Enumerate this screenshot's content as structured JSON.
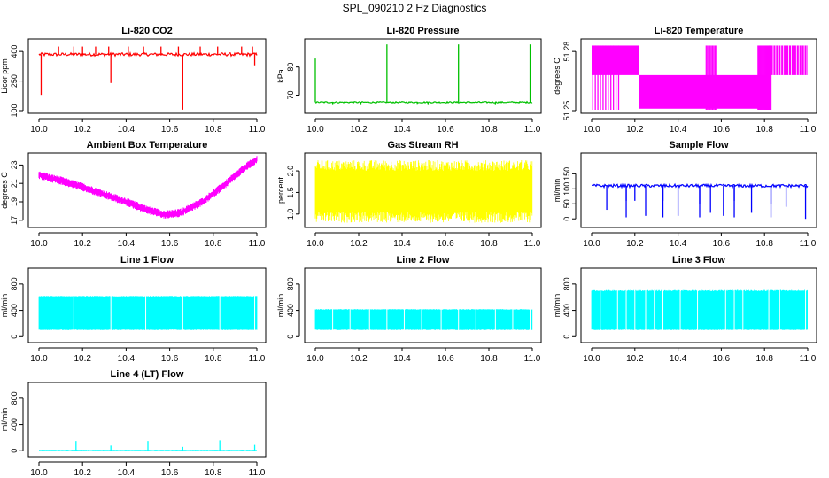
{
  "figure_title": "SPL_090210  2 Hz Diagnostics",
  "chart_data": [
    {
      "type": "line",
      "title": "Li-820 CO2",
      "xlabel": "",
      "ylabel": "Licor ppm",
      "color": "#ff0000",
      "xlim": [
        10.0,
        11.0
      ],
      "ylim": [
        100,
        450
      ],
      "yticks": [
        100,
        250,
        400
      ],
      "xticks": [
        "10.0",
        "10.2",
        "10.4",
        "10.6",
        "10.8",
        "11.0"
      ],
      "baseline": 385,
      "noise": 8,
      "spikes": [
        [
          10.01,
          180
        ],
        [
          10.09,
          425
        ],
        [
          10.16,
          425
        ],
        [
          10.2,
          425
        ],
        [
          10.26,
          425
        ],
        [
          10.32,
          425
        ],
        [
          10.33,
          240
        ],
        [
          10.41,
          425
        ],
        [
          10.48,
          425
        ],
        [
          10.56,
          425
        ],
        [
          10.64,
          425
        ],
        [
          10.66,
          105
        ],
        [
          10.74,
          425
        ],
        [
          10.82,
          425
        ],
        [
          10.93,
          425
        ],
        [
          10.98,
          425
        ],
        [
          10.99,
          330
        ]
      ]
    },
    {
      "type": "line",
      "title": "Li-820 Pressure",
      "xlabel": "",
      "ylabel": "kPa",
      "color": "#00c000",
      "xlim": [
        10.0,
        11.0
      ],
      "ylim": [
        64.5,
        89
      ],
      "yticks": [
        70,
        80
      ],
      "xticks": [
        "10.0",
        "10.2",
        "10.4",
        "10.6",
        "10.8",
        "11.0"
      ],
      "baseline": 67.5,
      "noise": 0.25,
      "spikes": [
        [
          10.0,
          83
        ],
        [
          10.33,
          88
        ],
        [
          10.66,
          88
        ],
        [
          10.99,
          88
        ],
        [
          10.08,
          66.5
        ],
        [
          10.21,
          66.5
        ],
        [
          10.47,
          66.6
        ],
        [
          10.52,
          66.5
        ],
        [
          10.83,
          66.5
        ]
      ]
    },
    {
      "type": "step",
      "title": "Li-820 Temperature",
      "xlabel": "",
      "ylabel": "degrees C",
      "color": "#ff00ff",
      "xlim": [
        10.0,
        11.0
      ],
      "ylim": [
        51.25,
        51.285
      ],
      "yticks": [
        51.25,
        51.28
      ],
      "yticklabels": [
        "51.25",
        "51.28"
      ],
      "xticks": [
        "10.0",
        "10.2",
        "10.4",
        "10.6",
        "10.8",
        "11.0"
      ],
      "segments": [
        [
          10.0,
          10.22,
          51.283,
          51.268
        ],
        [
          10.22,
          10.82,
          51.268,
          51.251
        ],
        [
          10.82,
          11.0,
          51.283,
          51.268
        ]
      ],
      "dense_until": 10.13,
      "dense_from_1": 10.53,
      "dense_to_1": 10.58,
      "dense_from_2": 10.77
    },
    {
      "type": "line",
      "title": "Ambient Box Temperature",
      "xlabel": "",
      "ylabel": "degrees C",
      "color": "#ff00ff",
      "xlim": [
        10.0,
        11.0
      ],
      "ylim": [
        16.5,
        24
      ],
      "yticks": [
        17,
        19,
        21,
        23
      ],
      "xticks": [
        "10.0",
        "10.2",
        "10.4",
        "10.6",
        "10.8",
        "11.0"
      ],
      "curve": [
        [
          10.0,
          21.9
        ],
        [
          10.1,
          21.3
        ],
        [
          10.2,
          20.6
        ],
        [
          10.3,
          19.8
        ],
        [
          10.4,
          19.0
        ],
        [
          10.5,
          18.1
        ],
        [
          10.58,
          17.6
        ],
        [
          10.65,
          17.8
        ],
        [
          10.75,
          19.0
        ],
        [
          10.85,
          20.8
        ],
        [
          10.95,
          22.8
        ],
        [
          11.0,
          23.6
        ]
      ],
      "noise": 0.45
    },
    {
      "type": "band",
      "title": "Gas Stream RH",
      "xlabel": "",
      "ylabel": "percent",
      "color": "#ffff00",
      "xlim": [
        10.0,
        11.0
      ],
      "ylim": [
        0.75,
        2.35
      ],
      "yticks": [
        1.0,
        1.5,
        2.0
      ],
      "yticklabels": [
        "1.0",
        "1.5",
        "2.0"
      ],
      "xticks": [
        "10.0",
        "10.2",
        "10.4",
        "10.6",
        "10.8",
        "11.0"
      ],
      "low": 1.05,
      "high": 2.0,
      "min": 0.8,
      "max": 2.25
    },
    {
      "type": "line",
      "title": "Sample Flow",
      "xlabel": "",
      "ylabel": "ml/min",
      "color": "#0000ff",
      "xlim": [
        10.0,
        11.0
      ],
      "ylim": [
        -20,
        210
      ],
      "yticks": [
        0,
        50,
        100,
        150
      ],
      "xticks": [
        "10.0",
        "10.2",
        "10.4",
        "10.6",
        "10.8",
        "11.0"
      ],
      "baseline": 110,
      "noise": 5,
      "spikes": [
        [
          10.07,
          30
        ],
        [
          10.16,
          5
        ],
        [
          10.16,
          60
        ],
        [
          10.2,
          60
        ],
        [
          10.25,
          10
        ],
        [
          10.33,
          5
        ],
        [
          10.33,
          60
        ],
        [
          10.4,
          10
        ],
        [
          10.5,
          5
        ],
        [
          10.5,
          50
        ],
        [
          10.55,
          20
        ],
        [
          10.61,
          10
        ],
        [
          10.66,
          5
        ],
        [
          10.66,
          60
        ],
        [
          10.74,
          20
        ],
        [
          10.83,
          5
        ],
        [
          10.83,
          50
        ],
        [
          10.9,
          40
        ],
        [
          10.99,
          0
        ]
      ]
    },
    {
      "type": "band",
      "title": "Line 1 Flow",
      "xlabel": "",
      "ylabel": "ml/min",
      "color": "#00ffff",
      "xlim": [
        10.0,
        11.0
      ],
      "ylim": [
        -50,
        1000
      ],
      "yticks": [
        0,
        400,
        800
      ],
      "xticks": [
        "10.0",
        "10.2",
        "10.4",
        "10.6",
        "10.8",
        "11.0"
      ],
      "low": 110,
      "high": 610,
      "min": 100,
      "max": 620,
      "gaps": [
        10.16,
        10.33,
        10.49,
        10.66,
        10.83,
        10.99
      ]
    },
    {
      "type": "band",
      "title": "Line 2 Flow",
      "xlabel": "",
      "ylabel": "ml/min",
      "color": "#00ffff",
      "xlim": [
        10.0,
        11.0
      ],
      "ylim": [
        -50,
        1000
      ],
      "yticks": [
        0,
        400,
        800
      ],
      "xticks": [
        "10.0",
        "10.2",
        "10.4",
        "10.6",
        "10.8",
        "11.0"
      ],
      "low": 110,
      "high": 410,
      "min": 100,
      "max": 420,
      "gaps": [
        10.08,
        10.16,
        10.25,
        10.33,
        10.41,
        10.49,
        10.58,
        10.66,
        10.74,
        10.83,
        10.91,
        10.99
      ]
    },
    {
      "type": "band",
      "title": "Line 3 Flow",
      "xlabel": "",
      "ylabel": "ml/min",
      "color": "#00ffff",
      "xlim": [
        10.0,
        11.0
      ],
      "ylim": [
        -50,
        1000
      ],
      "yticks": [
        0,
        400,
        800
      ],
      "xticks": [
        "10.0",
        "10.2",
        "10.4",
        "10.6",
        "10.8",
        "11.0"
      ],
      "low": 110,
      "high": 690,
      "min": 100,
      "max": 710,
      "gaps": [
        10.04,
        10.12,
        10.16,
        10.2,
        10.25,
        10.29,
        10.33,
        10.41,
        10.49,
        10.62,
        10.66,
        10.7,
        10.82,
        10.87,
        10.99
      ]
    },
    {
      "type": "line",
      "title": "Line 4 (LT) Flow",
      "xlabel": "",
      "ylabel": "ml/min",
      "color": "#00ffff",
      "xlim": [
        10.0,
        11.0
      ],
      "ylim": [
        -50,
        1000
      ],
      "yticks": [
        0,
        400,
        800
      ],
      "xticks": [
        "10.0",
        "10.2",
        "10.4",
        "10.6",
        "10.8",
        "11.0"
      ],
      "baseline": 5,
      "noise": 3,
      "spikes": [
        [
          10.17,
          150
        ],
        [
          10.33,
          80
        ],
        [
          10.5,
          150
        ],
        [
          10.66,
          60
        ],
        [
          10.83,
          160
        ],
        [
          10.99,
          90
        ]
      ]
    }
  ]
}
